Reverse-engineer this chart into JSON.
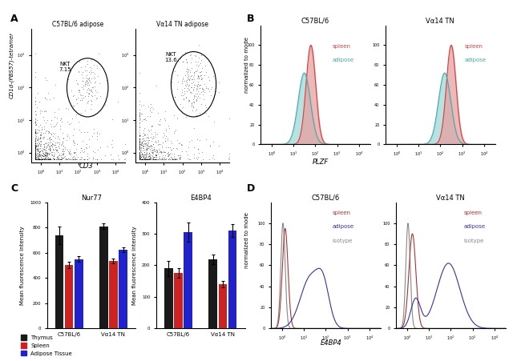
{
  "panel_A": {
    "title_left": "C57BL/6 adipose",
    "title_right": "Vα14 TN adipose",
    "xlabel": "CD3",
    "ylabel": "CD1d-(PBS57)-tetramer",
    "label_left": "NKT\n7.15",
    "label_right": "NKT\n13.6"
  },
  "panel_B": {
    "title_left": "C57BL/6",
    "title_right": "Vα14 TN",
    "xlabel": "PLZF",
    "ylabel": "normalized to mode",
    "legend_spleen": "spleen",
    "legend_adipose": "adipose",
    "color_spleen_fill": "#e8a0a0",
    "color_adipose_fill": "#a0d8d8",
    "color_spleen_line": "#cc4444",
    "color_adipose_line": "#44aaaa"
  },
  "panel_C": {
    "title_nur77": "Nur77",
    "title_e4bp4": "E4BP4",
    "ylabel": "Mean fluorescence intensity",
    "groups": [
      "C57BL/6",
      "Vα14 TN"
    ],
    "nur77_thymus": [
      740,
      810
    ],
    "nur77_spleen": [
      505,
      535
    ],
    "nur77_adipose": [
      550,
      625
    ],
    "nur77_thymus_err": [
      70,
      20
    ],
    "nur77_spleen_err": [
      25,
      20
    ],
    "nur77_adipose_err": [
      20,
      20
    ],
    "e4bp4_thymus": [
      190,
      220
    ],
    "e4bp4_spleen": [
      175,
      140
    ],
    "e4bp4_adipose": [
      305,
      310
    ],
    "e4bp4_thymus_err": [
      25,
      15
    ],
    "e4bp4_spleen_err": [
      15,
      10
    ],
    "e4bp4_adipose_err": [
      30,
      20
    ],
    "nur77_ylim": [
      0,
      1000
    ],
    "e4bp4_ylim": [
      0,
      400
    ],
    "color_thymus": "#1a1a1a",
    "color_spleen": "#cc2222",
    "color_adipose": "#2222cc",
    "legend_thymus": "Thymus",
    "legend_spleen": "Spleen",
    "legend_adipose": "Adipose Tissue"
  },
  "panel_D": {
    "title_left": "C57BL/6",
    "title_right": "Vα14 TN",
    "xlabel": "E4BP4",
    "ylabel": "normalized to mode",
    "legend_spleen": "spleen",
    "legend_adipose": "adipose",
    "legend_isotype": "isotype",
    "color_spleen": "#aa3333",
    "color_adipose": "#3333aa",
    "color_isotype": "#888888"
  }
}
